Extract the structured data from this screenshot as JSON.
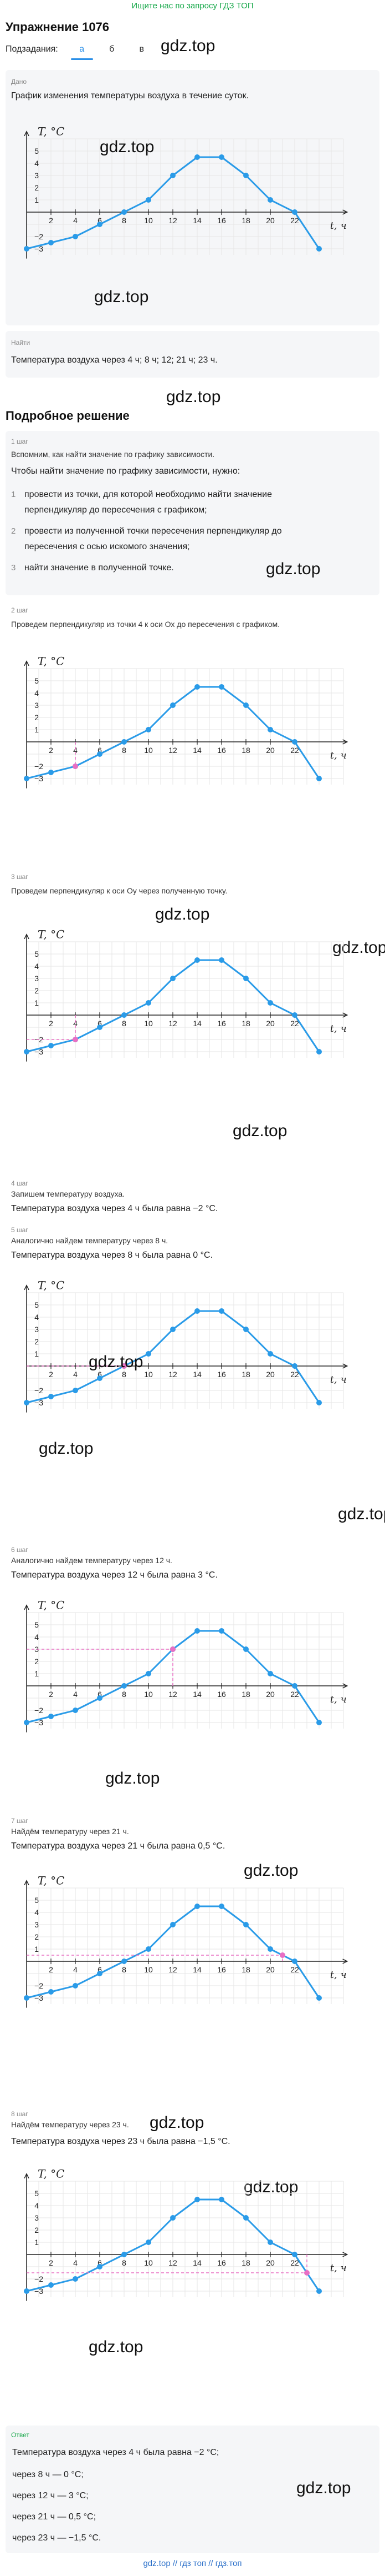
{
  "promo": "Ищите нас по запросу ГДЗ ТОП",
  "title": "Упражнение 1076",
  "subtasks": {
    "label": "Подзадания:",
    "items": [
      "а",
      "б",
      "в"
    ],
    "active": 0
  },
  "watermark": "gdz.top",
  "given": {
    "tag": "Дано",
    "text": "График изменения температуры воздуха в течение суток."
  },
  "find": {
    "tag": "Найти",
    "text": "Температура воздуха через 4 ч; 8 ч; 12; 21 ч; 23 ч."
  },
  "solution_title": "Подробное решение",
  "steps": [
    {
      "tag": "1 шаг",
      "intro": "Вспомним, как найти значение по графику зависимости.",
      "lead": "Чтобы найти значение по графику зависимости, нужно:",
      "items": [
        {
          "num": "1",
          "lines": [
            "провести из точки, для которой необходимо найти значение",
            "перпендикуляр до пересечения с графиком;"
          ]
        },
        {
          "num": "2",
          "lines": [
            "провести из полученной точки пересечения перпендикуляр до",
            "пересечения с осью искомого значения;"
          ]
        },
        {
          "num": "3",
          "lines": [
            "найти значение в полученной точке."
          ]
        }
      ]
    },
    {
      "tag": "2 шаг",
      "text": "Проведем перпендикуляр из точки 4 к оси Ох до пересечения с графиком."
    },
    {
      "tag": "3 шаг",
      "text": "Проведем перпендикуляр к оси Оу через полученную точку."
    },
    {
      "tag": "4 шаг",
      "note": "Запишем температуру воздуха.",
      "text": "Температура воздуха через 4 ч была равна −2 °C."
    },
    {
      "tag": "5 шаг",
      "note": "Аналогично найдем температуру через 8 ч.",
      "text": "Температура воздуха через 8 ч была равна 0 °C."
    },
    {
      "tag": "6 шаг",
      "note": "Аналогично найдем температуру через 12 ч.",
      "text": "Температура воздуха через 12 ч была равна 3 °C."
    },
    {
      "tag": "7 шаг",
      "note": "Найдём температуру через 21 ч.",
      "text": "Температура воздуха через 21 ч была равна 0,5 °C."
    },
    {
      "tag": "8 шаг",
      "note": "Найдём температуру через 23 ч.",
      "text": "Температура воздуха через 23 ч была равна −1,5 °C."
    }
  ],
  "answer": {
    "tag": "Ответ",
    "lines": [
      "Температура воздуха через 4 ч была равна −2 °C;",
      "через 8 ч — 0 °C;",
      "через 12 ч — 3 °C;",
      "через 21 ч — 0,5 °C;",
      "через 23 ч — −1,5 °C."
    ]
  },
  "footer": "gdz.top // гдз топ // гдз.топ",
  "colors": {
    "curve": "#2a9be8",
    "helper": "#e86fc4",
    "accent": "#2a8fe8",
    "promo": "#17a84a"
  },
  "chart_data": {
    "type": "line",
    "ylabel": "T, °C",
    "xlabel": "t, ч",
    "x_ticks": [
      "2",
      "4",
      "6",
      "8",
      "10",
      "12",
      "14",
      "16",
      "18",
      "20",
      "22"
    ],
    "y_ticks_pos": [
      "1",
      "2",
      "3",
      "4",
      "5"
    ],
    "y_ticks_neg": [
      "−2",
      "−3"
    ],
    "points": [
      [
        0,
        -3
      ],
      [
        2,
        -2.5
      ],
      [
        4,
        -2
      ],
      [
        6,
        -1
      ],
      [
        8,
        0
      ],
      [
        10,
        1
      ],
      [
        12,
        3
      ],
      [
        14,
        4.5
      ],
      [
        16,
        4.5
      ],
      [
        18,
        3
      ],
      [
        20,
        1
      ],
      [
        22,
        0
      ],
      [
        24,
        -3
      ]
    ],
    "xlim": [
      0,
      25
    ],
    "ylim": [
      -3,
      6
    ]
  }
}
